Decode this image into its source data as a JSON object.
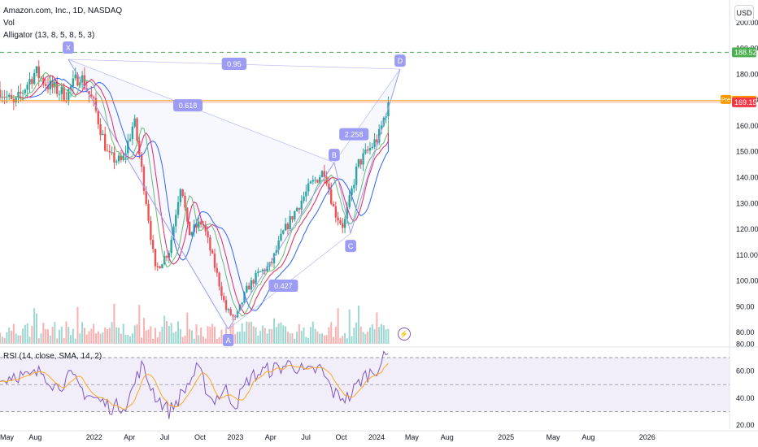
{
  "header": {
    "symbol_line": "Amazon.com, Inc., 1D, NASDAQ",
    "vol_label": "Vol",
    "alligator_label": "Alligator (13, 8, 5, 8, 5, 3)",
    "currency": "USD",
    "rsi_label": "RSI (14, close, SMA, 14, 2)"
  },
  "colors": {
    "up": "#26a69a",
    "down": "#ef5350",
    "jaw": "#2962ff",
    "teeth": "#e91e63",
    "lips": "#66bb6a",
    "pattern": "#9c9cf5",
    "pattern_label_bg": "#9c9cf5",
    "dashed_green": "#4caf50",
    "orange_line": "#ff9800",
    "price_red": "#f23645",
    "rsi_line": "#7e57c2",
    "rsi_ma": "#f9a825",
    "rsi_band": "#ede7f6"
  },
  "chart_data": [
    {
      "type": "candlestick",
      "title": "Amazon.com, Inc., 1D, NASDAQ",
      "ylim": [
        75,
        205
      ],
      "y_ticks": [
        80,
        90,
        100,
        110,
        120,
        130,
        140,
        150,
        160,
        170,
        180,
        190,
        200
      ],
      "x_tick_labels": [
        "May",
        "Aug",
        "2022",
        "Apr",
        "Jul",
        "Oct",
        "2023",
        "Apr",
        "Jul",
        "Oct",
        "2024",
        "May",
        "Aug",
        "2025",
        "May",
        "Aug",
        "2026"
      ],
      "x_label_values": [
        0.0,
        0.75,
        2.0,
        2.75,
        3.5,
        4.25,
        5.0,
        5.75,
        6.5,
        7.25,
        8.0,
        8.75,
        9.5,
        10.75,
        11.75,
        12.5,
        13.75
      ],
      "x_domain": [
        0,
        15.5
      ],
      "close_path": {
        "t": [
          0.0,
          0.3,
          0.6,
          0.75,
          1.0,
          1.4,
          1.7,
          2.0,
          2.3,
          2.6,
          2.85,
          3.1,
          3.3,
          3.6,
          3.85,
          4.0,
          4.3,
          4.6,
          4.8,
          5.0,
          5.25,
          5.5,
          5.75,
          6.0,
          6.3,
          6.6,
          6.9,
          7.1,
          7.3,
          7.6,
          7.85,
          8.05,
          8.25
        ],
        "close": [
          174,
          168,
          177,
          181,
          176,
          172,
          180,
          168,
          148,
          146,
          162,
          132,
          104,
          112,
          139,
          118,
          123,
          103,
          89,
          85,
          97,
          103,
          106,
          118,
          128,
          137,
          143,
          127,
          121,
          145,
          151,
          156,
          169.15
        ]
      },
      "volume_note": "daily volume bars along bottom of price pane",
      "current_price": 169.15,
      "pre_market_price": 169.8,
      "pre_label": "Pre",
      "resistance_level": 188.52,
      "alligator_series": [
        "Jaw",
        "Teeth",
        "Lips"
      ]
    },
    {
      "type": "harmonic_pattern",
      "points": [
        {
          "label": "X",
          "t": 1.45,
          "price": 185.8
        },
        {
          "label": "A",
          "t": 4.85,
          "price": 81.3
        },
        {
          "label": "B",
          "t": 7.1,
          "price": 145.8
        },
        {
          "label": "C",
          "t": 7.45,
          "price": 118.4
        },
        {
          "label": "D",
          "t": 8.5,
          "price": 182.0
        }
      ],
      "ratios": [
        {
          "label": "0.618"
        },
        {
          "label": "0.427"
        },
        {
          "label": "2.258"
        },
        {
          "label": "0.95"
        }
      ]
    },
    {
      "type": "line",
      "title": "RSI (14, close, SMA, 14, 2)",
      "ylim": [
        17,
        76
      ],
      "y_ticks": [
        20.0,
        40.0,
        60.0,
        80.0
      ],
      "bands": {
        "upper": 70,
        "middle": 50,
        "lower": 30
      },
      "series": [
        {
          "name": "RSI",
          "t": [
            0.0,
            0.3,
            0.6,
            0.9,
            1.2,
            1.5,
            1.8,
            2.1,
            2.4,
            2.7,
            3.0,
            3.3,
            3.6,
            3.9,
            4.2,
            4.5,
            4.8,
            5.0,
            5.3,
            5.6,
            5.9,
            6.2,
            6.5,
            6.8,
            7.1,
            7.4,
            7.7,
            8.0,
            8.25
          ],
          "values": [
            52,
            58,
            55,
            60,
            48,
            56,
            44,
            38,
            33,
            36,
            64,
            42,
            30,
            45,
            62,
            38,
            46,
            35,
            55,
            60,
            62,
            66,
            58,
            62,
            43,
            40,
            55,
            62,
            73
          ]
        }
      ]
    }
  ]
}
